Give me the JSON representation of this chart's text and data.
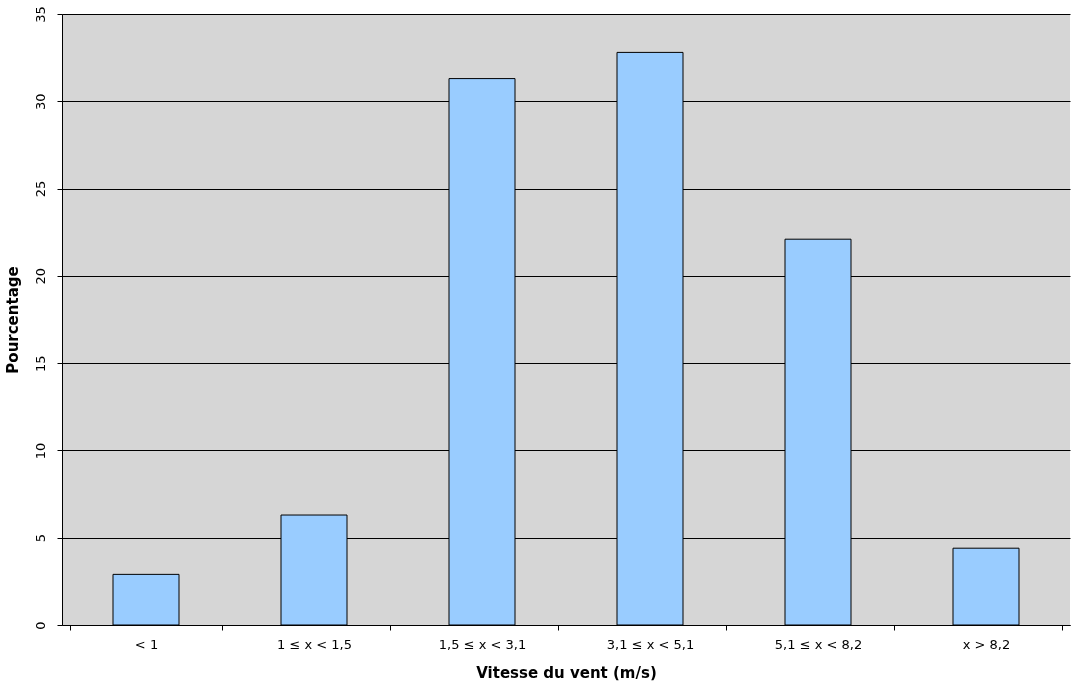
{
  "chart_data": {
    "type": "bar",
    "xlabel": "Vitesse du vent (m/s)",
    "ylabel": "Pourcentage",
    "categories": [
      "< 1",
      "1 ≤ x < 1,5",
      "1,5 ≤ x < 3,1",
      "3,1 ≤ x < 5,1",
      "5,1 ≤ x < 8,2",
      "x > 8,2"
    ],
    "values": [
      2.9,
      6.3,
      31.3,
      32.8,
      22.1,
      4.4
    ],
    "color": "#99ccff",
    "ylim": [
      0,
      35
    ],
    "yticks": [
      0,
      5,
      10,
      15,
      20,
      25,
      30,
      35
    ],
    "grid": "y"
  }
}
